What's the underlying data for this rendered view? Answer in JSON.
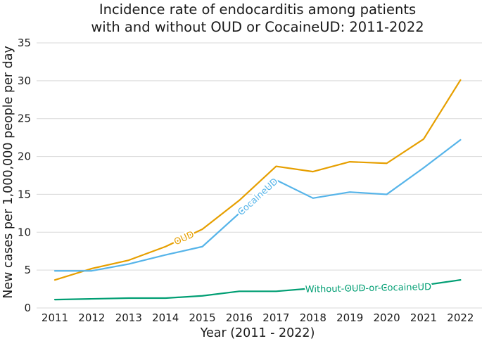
{
  "chart_data": {
    "type": "line",
    "title": "Incidence rate of endocarditis among patients with and without OUD or CocaineUD: 2011-2022",
    "title_lines": [
      "Incidence rate of endocarditis among patients",
      "with and without OUD or CocaineUD: 2011-2022"
    ],
    "xlabel": "Year (2011 - 2022)",
    "ylabel": "New cases per 1,000,000 people per day",
    "x": [
      2011,
      2012,
      2013,
      2014,
      2015,
      2016,
      2017,
      2018,
      2019,
      2020,
      2021,
      2022
    ],
    "ylim": [
      0,
      35
    ],
    "yticks": [
      0,
      5,
      10,
      15,
      20,
      25,
      30,
      35
    ],
    "grid": "horizontal",
    "series": [
      {
        "name": "OUD",
        "color": "#E69F00",
        "values": [
          3.7,
          5.2,
          6.3,
          8.1,
          10.4,
          14.2,
          18.7,
          18.0,
          19.3,
          19.1,
          22.3,
          30.1
        ],
        "label_anchor_index": 3
      },
      {
        "name": "CocaineUD",
        "color": "#56B4E9",
        "values": [
          4.9,
          4.9,
          5.8,
          7.0,
          8.1,
          12.5,
          16.9,
          14.5,
          15.3,
          15.0,
          18.5,
          22.2
        ],
        "label_anchor_index": 5
      },
      {
        "name": "Without-OUD-or-CocaineUD",
        "color": "#009E73",
        "values": [
          1.1,
          1.2,
          1.3,
          1.3,
          1.6,
          2.2,
          2.2,
          2.6,
          2.6,
          2.7,
          3.0,
          3.7
        ],
        "label_anchor_index": 8
      }
    ]
  }
}
